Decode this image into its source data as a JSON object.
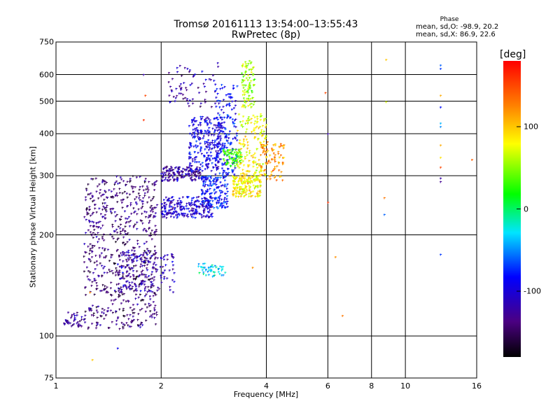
{
  "chart_data": {
    "type": "scatter",
    "title": "Tromsø 20161113 13:54:00–13:55:43",
    "subtitle": "RwPretec (8p)",
    "xlabel": "Frequency [MHz]",
    "ylabel": "Stationary phase Virtual Height [km]",
    "xscale": "log",
    "yscale": "log",
    "xlim": [
      1,
      16
    ],
    "ylim": [
      75,
      750
    ],
    "x_ticks": [
      1,
      2,
      4,
      6,
      8,
      10,
      16
    ],
    "y_ticks": [
      75,
      100,
      200,
      300,
      400,
      500,
      600,
      750
    ],
    "x_grid": [
      1,
      2,
      4,
      6,
      8,
      10,
      16
    ],
    "y_grid": [
      100,
      200,
      300,
      400,
      500,
      600
    ],
    "grid": true,
    "colorbar": {
      "label": "[deg]",
      "range": [
        -180,
        180
      ],
      "ticks": [
        100,
        0,
        -100
      ],
      "colormap": "rainbow"
    },
    "phase_legend": {
      "title": "Phase",
      "o_mode": "mean, sd,O: -98.9, 20.2",
      "x_mode": "mean, sd,X:  86.9, 22.6"
    },
    "clusters": [
      {
        "fmin": 1.2,
        "fmax": 1.95,
        "hmin": 105,
        "hmax": 300,
        "phase": -140,
        "count": 700
      },
      {
        "fmin": 1.5,
        "fmax": 2.2,
        "hmin": 135,
        "hmax": 180,
        "phase": -115,
        "count": 150
      },
      {
        "fmin": 2.0,
        "fmax": 2.8,
        "hmin": 225,
        "hmax": 260,
        "phase": -105,
        "count": 220
      },
      {
        "fmin": 2.0,
        "fmax": 2.6,
        "hmin": 290,
        "hmax": 320,
        "phase": -125,
        "count": 140
      },
      {
        "fmin": 2.4,
        "fmax": 3.0,
        "hmin": 310,
        "hmax": 450,
        "phase": -95,
        "count": 260
      },
      {
        "fmin": 2.6,
        "fmax": 3.1,
        "hmin": 240,
        "hmax": 300,
        "phase": -80,
        "count": 160
      },
      {
        "fmin": 2.1,
        "fmax": 2.95,
        "hmin": 480,
        "hmax": 640,
        "phase": -120,
        "count": 70
      },
      {
        "fmin": 2.85,
        "fmax": 3.3,
        "hmin": 300,
        "hmax": 560,
        "phase": -85,
        "count": 160
      },
      {
        "fmin": 3.0,
        "fmax": 3.4,
        "hmin": 320,
        "hmax": 360,
        "phase": 30,
        "count": 80
      },
      {
        "fmin": 3.4,
        "fmax": 3.7,
        "hmin": 480,
        "hmax": 660,
        "phase": 55,
        "count": 90
      },
      {
        "fmin": 3.2,
        "fmax": 3.85,
        "hmin": 260,
        "hmax": 300,
        "phase": 85,
        "count": 170
      },
      {
        "fmin": 3.3,
        "fmax": 4.0,
        "hmin": 300,
        "hmax": 460,
        "phase": 80,
        "count": 150
      },
      {
        "fmin": 3.85,
        "fmax": 4.5,
        "hmin": 290,
        "hmax": 380,
        "phase": 120,
        "count": 90
      },
      {
        "fmin": 2.55,
        "fmax": 3.05,
        "hmin": 150,
        "hmax": 165,
        "phase": -30,
        "count": 50
      },
      {
        "fmin": 1.05,
        "fmax": 1.2,
        "hmin": 107,
        "hmax": 118,
        "phase": -125,
        "count": 40
      }
    ],
    "points": [
      {
        "x": 12.6,
        "y": 640,
        "phase": -60
      },
      {
        "x": 12.6,
        "y": 625,
        "phase": -70
      },
      {
        "x": 12.6,
        "y": 520,
        "phase": 110
      },
      {
        "x": 12.6,
        "y": 480,
        "phase": -80
      },
      {
        "x": 12.6,
        "y": 430,
        "phase": -40
      },
      {
        "x": 12.6,
        "y": 420,
        "phase": -50
      },
      {
        "x": 12.6,
        "y": 370,
        "phase": 110
      },
      {
        "x": 12.6,
        "y": 340,
        "phase": 90
      },
      {
        "x": 12.6,
        "y": 318,
        "phase": 150
      },
      {
        "x": 12.6,
        "y": 295,
        "phase": -120
      },
      {
        "x": 12.6,
        "y": 288,
        "phase": -130
      },
      {
        "x": 12.6,
        "y": 175,
        "phase": -70
      },
      {
        "x": 8.8,
        "y": 665,
        "phase": 100
      },
      {
        "x": 8.8,
        "y": 498,
        "phase": 70
      },
      {
        "x": 8.7,
        "y": 258,
        "phase": 130
      },
      {
        "x": 8.7,
        "y": 230,
        "phase": -60
      },
      {
        "x": 5.9,
        "y": 530,
        "phase": 150
      },
      {
        "x": 6.0,
        "y": 400,
        "phase": -120
      },
      {
        "x": 6.0,
        "y": 250,
        "phase": 160
      },
      {
        "x": 6.3,
        "y": 172,
        "phase": 120
      },
      {
        "x": 6.6,
        "y": 115,
        "phase": 130
      },
      {
        "x": 1.5,
        "y": 92,
        "phase": -90
      },
      {
        "x": 1.27,
        "y": 85,
        "phase": 100
      },
      {
        "x": 1.25,
        "y": 135,
        "phase": 120
      },
      {
        "x": 1.78,
        "y": 600,
        "phase": -120
      },
      {
        "x": 1.8,
        "y": 520,
        "phase": 150
      },
      {
        "x": 1.78,
        "y": 440,
        "phase": 160
      },
      {
        "x": 2.9,
        "y": 650,
        "phase": -110
      },
      {
        "x": 3.65,
        "y": 160,
        "phase": 120
      },
      {
        "x": 15.5,
        "y": 335,
        "phase": 140
      }
    ]
  }
}
